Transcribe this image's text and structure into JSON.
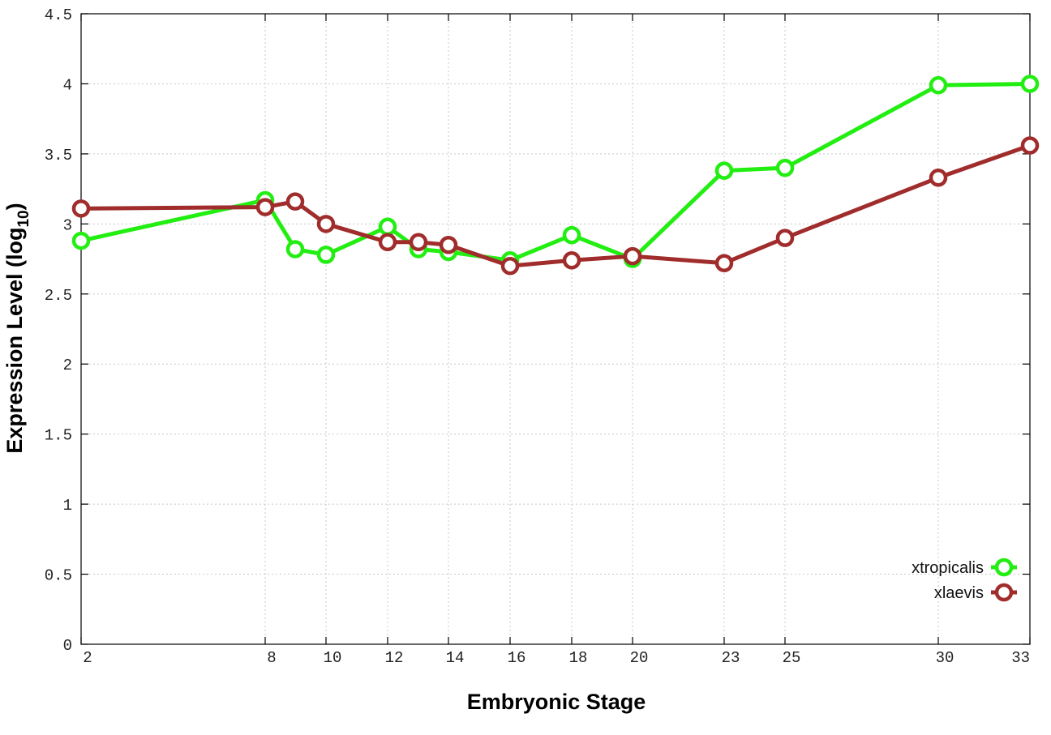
{
  "chart_data": {
    "type": "line",
    "title": "",
    "xlabel": "Embryonic Stage",
    "ylabel_main": "Expression Level (log",
    "ylabel_sub": "10",
    "ylabel_close": ")",
    "x_scale": "categorical-stage",
    "x": [
      2,
      8,
      9,
      10,
      12,
      13,
      14,
      16,
      18,
      20,
      23,
      25,
      30,
      33
    ],
    "x_ticks": [
      2,
      8,
      10,
      12,
      14,
      16,
      18,
      20,
      23,
      25,
      30,
      33
    ],
    "x_tick_labels": [
      "2",
      "8",
      "10",
      "12",
      "14",
      "16",
      "18",
      "20",
      "23",
      "25",
      "30",
      "33"
    ],
    "ylim": [
      0,
      4.5
    ],
    "y_ticks": [
      0,
      0.5,
      1,
      1.5,
      2,
      2.5,
      3,
      3.5,
      4,
      4.5
    ],
    "y_tick_labels": [
      "0",
      "0.5",
      "1",
      "1.5",
      "2",
      "2.5",
      "3",
      "3.5",
      "4",
      "4.5"
    ],
    "grid": true,
    "legend_position": "bottom-right",
    "series": [
      {
        "name": "xtropicalis",
        "color": "#22ee11",
        "values": [
          2.88,
          3.17,
          2.82,
          2.78,
          2.98,
          2.82,
          2.8,
          2.74,
          2.92,
          2.75,
          3.38,
          3.4,
          3.99,
          4.0
        ]
      },
      {
        "name": "xlaevis",
        "color": "#a02c2c",
        "values": [
          3.11,
          3.12,
          3.16,
          3.0,
          2.87,
          2.87,
          2.85,
          2.7,
          2.74,
          2.77,
          2.72,
          2.9,
          3.33,
          3.56
        ]
      }
    ]
  }
}
